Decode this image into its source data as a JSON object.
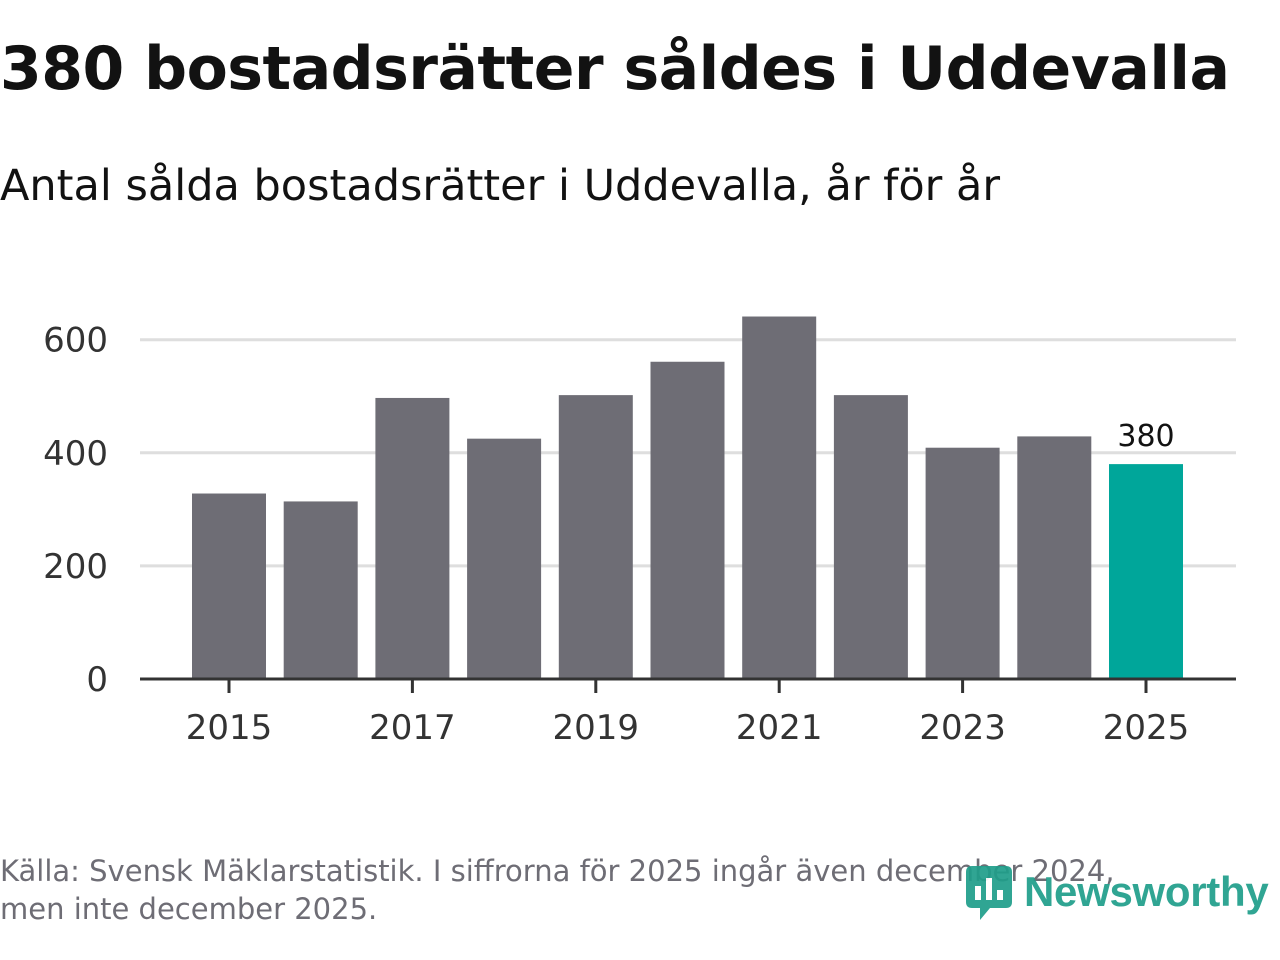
{
  "title": "380 bostadsrätter såldes i Uddevalla",
  "subtitle": "Antal sålda bostadsrätter i Uddevalla, år för år",
  "footnote": {
    "line1": "Källa: Svensk Mäklarstatistik. I siffrorna för 2025 ingår även december 2024,",
    "line2": "men inte december 2025."
  },
  "logo": {
    "name": "Newsworthy",
    "icon": "newsworthy-logo-icon"
  },
  "colors": {
    "bar": "#6e6d75",
    "highlight": "#00a69a",
    "grid": "#dedede",
    "axis": "#333333",
    "tick_text": "#333333",
    "brand": "#1f9e8a"
  },
  "chart_data": {
    "type": "bar",
    "categories": [
      "2015",
      "2016",
      "2017",
      "2018",
      "2019",
      "2020",
      "2021",
      "2022",
      "2023",
      "2024",
      "2025"
    ],
    "values": [
      328,
      314,
      497,
      425,
      502,
      561,
      641,
      502,
      409,
      429,
      380
    ],
    "highlight_index": 10,
    "data_labels": [
      {
        "index": 10,
        "text": "380"
      }
    ],
    "xtick_labels": [
      "2015",
      "2017",
      "2019",
      "2021",
      "2023",
      "2025"
    ],
    "ytick_labels": [
      "0",
      "200",
      "400",
      "600"
    ],
    "ylim": [
      0,
      700
    ],
    "xlabel": "",
    "ylabel": "",
    "grid": true,
    "legend": "none"
  }
}
